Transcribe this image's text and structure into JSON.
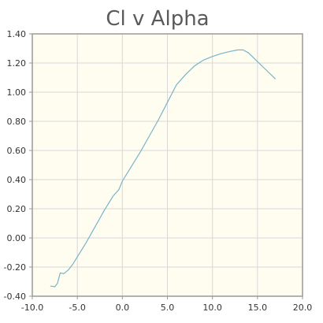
{
  "chart_data": {
    "type": "line",
    "title": "Cl v Alpha",
    "xlabel": "",
    "ylabel": "",
    "xlim": [
      -10,
      20
    ],
    "ylim": [
      -0.4,
      1.4
    ],
    "x_ticks": [
      "-10.0",
      "-5.0",
      "0.0",
      "5.0",
      "10.0",
      "15.0",
      "20.0"
    ],
    "y_ticks": [
      "-0.40",
      "-0.20",
      "0.00",
      "0.20",
      "0.40",
      "0.60",
      "0.80",
      "1.00",
      "1.20",
      "1.40"
    ],
    "x_tick_values": [
      -10,
      -5,
      0,
      5,
      10,
      15,
      20
    ],
    "y_tick_values": [
      -0.4,
      -0.2,
      0,
      0.2,
      0.4,
      0.6,
      0.8,
      1.0,
      1.2,
      1.4
    ],
    "grid": true,
    "colors": {
      "plot_bg": "#fffcf0",
      "grid": "#d8d8d8",
      "axis": "#9a9a9a",
      "line": "#78b4cc"
    },
    "series": [
      {
        "x": [
          -8.0,
          -7.5,
          -7.2,
          -6.9,
          -6.5,
          -6.0,
          -5.5,
          -5.0,
          -4.0,
          -3.0,
          -2.0,
          -1.0,
          -0.4,
          0.0,
          1.0,
          2.0,
          3.0,
          4.0,
          5.0,
          6.0,
          7.0,
          8.0,
          9.0,
          10.0,
          11.0,
          12.0,
          12.8,
          13.4,
          14.0,
          15.0,
          16.0,
          17.0
        ],
        "y": [
          -0.33,
          -0.335,
          -0.31,
          -0.24,
          -0.245,
          -0.22,
          -0.18,
          -0.13,
          -0.03,
          0.08,
          0.19,
          0.29,
          0.33,
          0.39,
          0.49,
          0.59,
          0.7,
          0.81,
          0.93,
          1.05,
          1.12,
          1.18,
          1.22,
          1.245,
          1.265,
          1.28,
          1.29,
          1.29,
          1.27,
          1.21,
          1.15,
          1.09
        ]
      }
    ]
  }
}
